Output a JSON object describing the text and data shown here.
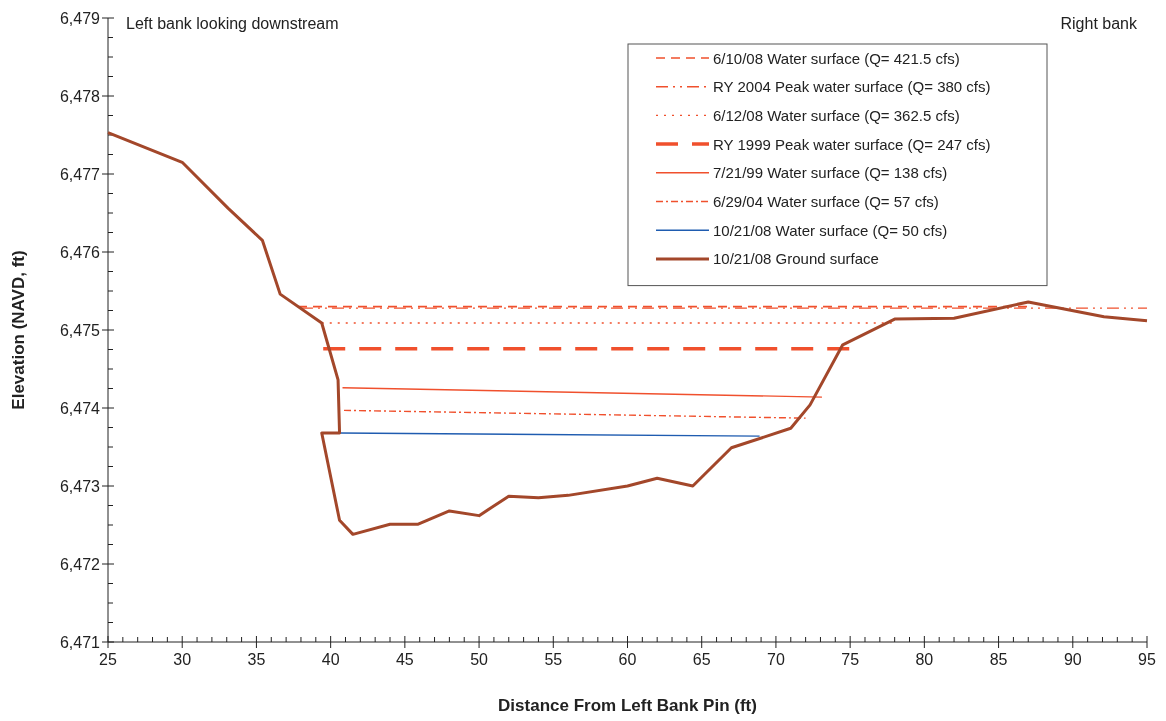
{
  "chart_data": {
    "type": "line",
    "xlabel": "Distance From Left Bank Pin (ft)",
    "ylabel": "Elevation (NAVD, ft)",
    "annotations": [
      "Left bank looking downstream",
      "Right bank"
    ],
    "xlim": [
      25,
      95
    ],
    "xticks": [
      25,
      {
        "value": 26,
        "label": null
      },
      {
        "value": 27,
        "label": null
      },
      {
        "value": 28,
        "label": null
      },
      {
        "value": 29,
        "label": null
      },
      30,
      {
        "value": 31,
        "label": null
      },
      {
        "value": 32,
        "label": null
      },
      {
        "value": 33,
        "label": null
      },
      {
        "value": 34,
        "label": null
      },
      35,
      {
        "value": 36,
        "label": null
      },
      {
        "value": 37,
        "label": null
      },
      {
        "value": 38,
        "label": null
      },
      {
        "value": 39,
        "label": null
      },
      40,
      {
        "value": 41,
        "label": null
      },
      {
        "value": 42,
        "label": null
      },
      {
        "value": 43,
        "label": null
      },
      {
        "value": 44,
        "label": null
      },
      45,
      {
        "value": 46,
        "label": null
      },
      {
        "value": 47,
        "label": null
      },
      {
        "value": 48,
        "label": null
      },
      {
        "value": 49,
        "label": null
      },
      50,
      {
        "value": 51,
        "label": null
      },
      {
        "value": 52,
        "label": null
      },
      {
        "value": 53,
        "label": null
      },
      {
        "value": 54,
        "label": null
      },
      55,
      {
        "value": 56,
        "label": null
      },
      {
        "value": 57,
        "label": null
      },
      {
        "value": 58,
        "label": null
      },
      {
        "value": 59,
        "label": null
      },
      60,
      {
        "value": 61,
        "label": null
      },
      {
        "value": 62,
        "label": null
      },
      {
        "value": 63,
        "label": null
      },
      {
        "value": 64,
        "label": null
      },
      65,
      {
        "value": 66,
        "label": null
      },
      {
        "value": 67,
        "label": null
      },
      {
        "value": 68,
        "label": null
      },
      {
        "value": 69,
        "label": null
      },
      70,
      {
        "value": 71,
        "label": null
      },
      {
        "value": 72,
        "label": null
      },
      {
        "value": 73,
        "label": null
      },
      {
        "value": 74,
        "label": null
      },
      75,
      {
        "value": 76,
        "label": null
      },
      {
        "value": 77,
        "label": null
      },
      {
        "value": 78,
        "label": null
      },
      {
        "value": 79,
        "label": null
      },
      80,
      {
        "value": 81,
        "label": null
      },
      {
        "value": 82,
        "label": null
      },
      {
        "value": 83,
        "label": null
      },
      {
        "value": 84,
        "label": null
      },
      85,
      {
        "value": 86,
        "label": null
      },
      {
        "value": 87,
        "label": null
      },
      {
        "value": 88,
        "label": null
      },
      {
        "value": 89,
        "label": null
      },
      90,
      {
        "value": 91,
        "label": null
      },
      {
        "value": 92,
        "label": null
      },
      {
        "value": 93,
        "label": null
      },
      {
        "value": 94,
        "label": null
      },
      95
    ],
    "ylim": [
      6471,
      6479
    ],
    "yticks": [
      {
        "value": 6471,
        "label": "6,471"
      },
      {
        "value": 6471.25,
        "label": null
      },
      {
        "value": 6471.5,
        "label": null
      },
      {
        "value": 6471.75,
        "label": null
      },
      {
        "value": 6472,
        "label": "6,472"
      },
      {
        "value": 6472.25,
        "label": null
      },
      {
        "value": 6472.5,
        "label": null
      },
      {
        "value": 6472.75,
        "label": null
      },
      {
        "value": 6473,
        "label": "6,473"
      },
      {
        "value": 6473.25,
        "label": null
      },
      {
        "value": 6473.5,
        "label": null
      },
      {
        "value": 6473.75,
        "label": null
      },
      {
        "value": 6474,
        "label": "6,474"
      },
      {
        "value": 6474.25,
        "label": null
      },
      {
        "value": 6474.5,
        "label": null
      },
      {
        "value": 6474.75,
        "label": null
      },
      {
        "value": 6475,
        "label": "6,475"
      },
      {
        "value": 6475.25,
        "label": null
      },
      {
        "value": 6475.5,
        "label": null
      },
      {
        "value": 6475.75,
        "label": null
      },
      {
        "value": 6476,
        "label": "6,476"
      },
      {
        "value": 6476.25,
        "label": null
      },
      {
        "value": 6476.5,
        "label": null
      },
      {
        "value": 6476.75,
        "label": null
      },
      {
        "value": 6477,
        "label": "6,477"
      },
      {
        "value": 6477.25,
        "label": null
      },
      {
        "value": 6477.5,
        "label": null
      },
      {
        "value": 6477.75,
        "label": null
      },
      {
        "value": 6478,
        "label": "6,478"
      },
      {
        "value": 6478.25,
        "label": null
      },
      {
        "value": 6478.5,
        "label": null
      },
      {
        "value": 6478.75,
        "label": null
      },
      {
        "value": 6479,
        "label": "6,479"
      }
    ],
    "grid": false,
    "legend": "top right",
    "marker": "none",
    "series": [
      {
        "name": "6/10/08 Water surface (Q= 421.5 cfs)",
        "color": "#f0502d",
        "line_style": "dashed",
        "x": [
          37.8,
          87
        ],
        "values": [
          6475.3,
          6475.3
        ]
      },
      {
        "name": "RY 2004 Peak water surface (Q= 380 cfs)",
        "color": "#f0502d",
        "line_style": "dashdotdot",
        "x": [
          38,
          95
        ],
        "values": [
          6475.28,
          6475.28
        ]
      },
      {
        "name": "6/12/08 Water surface (Q= 362.5 cfs)",
        "color": "#f0502d",
        "line_style": "dotted",
        "x": [
          39.4,
          78
        ],
        "values": [
          6475.09,
          6475.09
        ]
      },
      {
        "name": "RY 1999 Peak water surface (Q= 247 cfs)",
        "color": "#f0502d",
        "line_style": "longdash",
        "x": [
          39.5,
          75
        ],
        "values": [
          6474.76,
          6474.76
        ]
      },
      {
        "name": "7/21/99 Water surface (Q= 138 cfs)",
        "color": "#f0502d",
        "line_style": "solid",
        "x": [
          40.8,
          73.1
        ],
        "values": [
          6474.26,
          6474.14
        ]
      },
      {
        "name": "6/29/04 Water surface (Q= 57 cfs)",
        "color": "#f0502d",
        "line_style": "dashdot",
        "x": [
          40.9,
          72
        ],
        "values": [
          6473.97,
          6473.87
        ]
      },
      {
        "name": "10/21/08 Water surface (Q= 50 cfs)",
        "color": "#1f5cb0",
        "line_style": "solid",
        "x": [
          40.6,
          68.9
        ],
        "values": [
          6473.68,
          6473.64
        ]
      },
      {
        "name": "10/21/08 Ground surface",
        "color": "#a3472a",
        "line_style": "solid",
        "x": [
          25,
          30,
          33.1,
          35.4,
          36.6,
          39.4,
          40.5,
          40.6,
          39.4,
          40.6,
          41.5,
          44,
          45.9,
          48,
          50,
          52,
          54,
          56,
          60,
          62,
          64.4,
          67,
          71,
          72.3,
          74.5,
          78,
          82,
          87,
          92.1,
          95
        ],
        "values": [
          6477.53,
          6477.15,
          6476.56,
          6476.15,
          6475.46,
          6475.09,
          6474.36,
          6473.68,
          6473.68,
          6472.56,
          6472.38,
          6472.51,
          6472.51,
          6472.68,
          6472.62,
          6472.87,
          6472.85,
          6472.88,
          6473,
          6473.1,
          6473,
          6473.49,
          6473.74,
          6474.04,
          6474.81,
          6475.14,
          6475.15,
          6475.36,
          6475.17,
          6475.12
        ]
      }
    ]
  }
}
